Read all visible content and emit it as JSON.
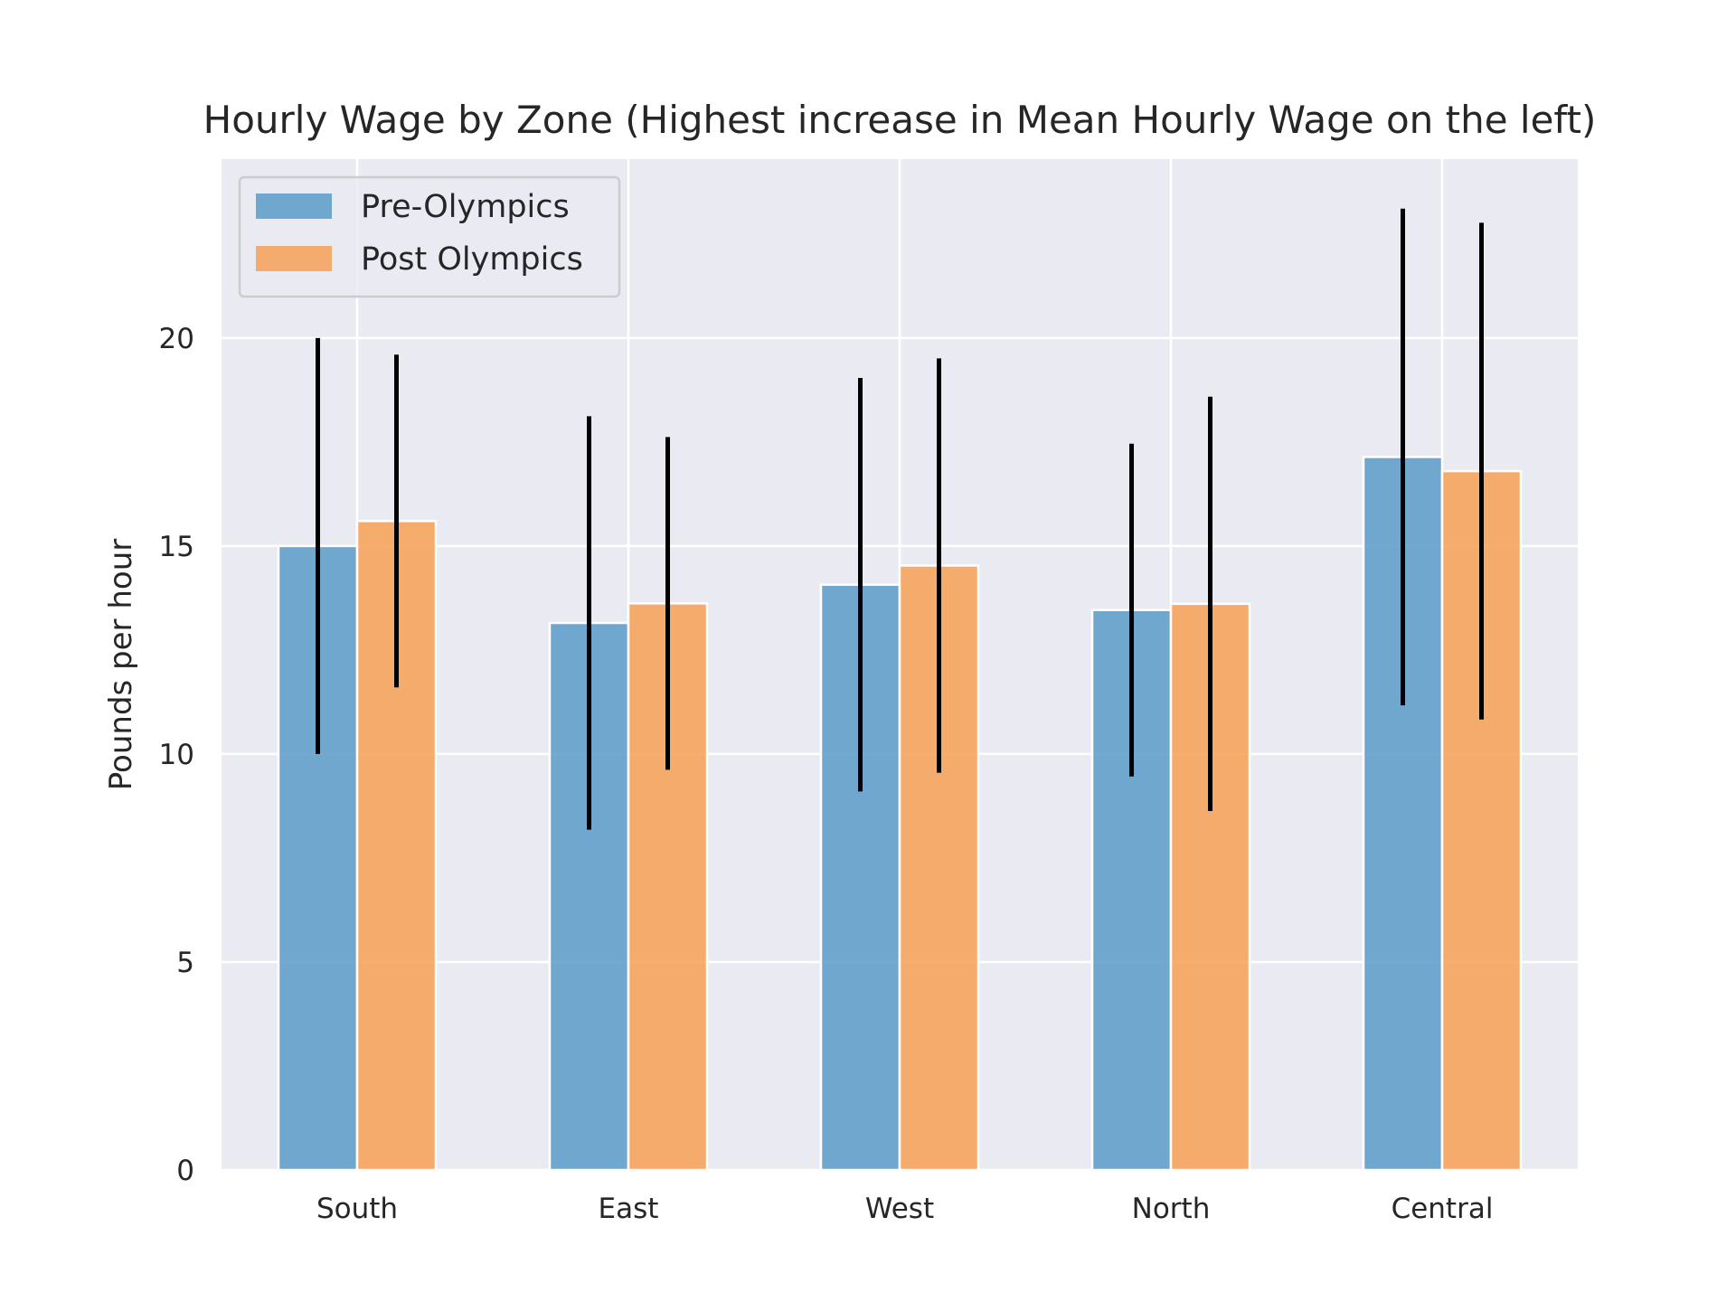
{
  "chart_data": {
    "type": "bar",
    "title": "Hourly Wage by Zone (Highest increase in Mean Hourly Wage on the left)",
    "xlabel": "",
    "ylabel": "Pounds per hour",
    "categories": [
      "South",
      "East",
      "West",
      "North",
      "Central"
    ],
    "ylim": [
      0,
      24.3
    ],
    "yticks": [
      0,
      5,
      10,
      15,
      20
    ],
    "grid": true,
    "legend_position": "top-left",
    "series": [
      {
        "name": "Pre-Olympics",
        "color": "#5b9bc8",
        "values": [
          15.0,
          13.15,
          14.07,
          13.46,
          17.14
        ],
        "error": [
          5.0,
          4.97,
          4.97,
          4.0,
          5.97
        ]
      },
      {
        "name": "Post Olympics",
        "color": "#f7a055",
        "values": [
          15.6,
          13.62,
          14.53,
          13.61,
          16.8
        ],
        "error": [
          4.0,
          4.0,
          4.98,
          4.98,
          5.97
        ]
      }
    ],
    "error_bar_color": "#000000",
    "background_color": "#eaeaf2",
    "grid_color": "#ffffff"
  }
}
